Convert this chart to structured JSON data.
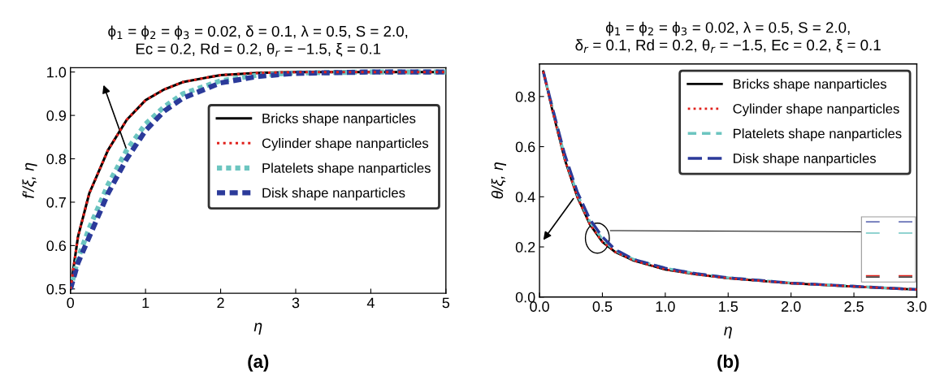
{
  "chart_data": [
    {
      "type": "line",
      "title": "ϕ$_{1}$ = ϕ$_{2}$ = ϕ$_{3}$ = 0.02, δ = 0.1, λ = 0.5, S = 2.0,\nEc = 0.2, Rd = 0.2, θ$_{r}$ = −1.5, ξ = 0.1",
      "xlabel": "η",
      "ylabel": "f′/ξ, η",
      "xlim": [
        0,
        5
      ],
      "ylim": [
        0.49,
        1.01
      ],
      "xticks": [
        0,
        1,
        2,
        3,
        4,
        5
      ],
      "yticks": [
        0.5,
        0.6,
        0.7,
        0.8,
        0.9,
        {
          "value": 1,
          "label": "1.0"
        }
      ],
      "grid": false,
      "legend": "center right",
      "annotations": [
        "(a)"
      ],
      "x": [
        0,
        0.1,
        0.25,
        0.5,
        0.75,
        1.0,
        1.25,
        1.5,
        2.0,
        2.5,
        3.0,
        4.0,
        5.0
      ],
      "series": [
        {
          "name": "Bricks shape nanparticles",
          "color": "#000000",
          "line_style": "solid",
          "values": [
            0.5,
            0.62,
            0.72,
            0.82,
            0.89,
            0.935,
            0.96,
            0.977,
            0.993,
            0.998,
            1.0,
            1.0,
            1.0
          ]
        },
        {
          "name": "Cylinder shape nanparticles",
          "color": "#e0201b",
          "line_style": "dotted",
          "values": [
            0.5,
            0.62,
            0.72,
            0.82,
            0.89,
            0.935,
            0.96,
            0.977,
            0.993,
            0.998,
            1.0,
            1.0,
            1.0
          ]
        },
        {
          "name": "Platelets shape nanparticles",
          "color": "#6cc5c0",
          "line_style": "dashed",
          "values": [
            0.5,
            0.57,
            0.64,
            0.74,
            0.82,
            0.88,
            0.92,
            0.95,
            0.98,
            0.993,
            0.998,
            1.0,
            1.0
          ]
        },
        {
          "name": "Disk shape nanparticles",
          "color": "#2b3a9a",
          "line_style": "dashed",
          "values": [
            0.5,
            0.56,
            0.62,
            0.72,
            0.8,
            0.865,
            0.91,
            0.94,
            0.975,
            0.99,
            0.997,
            1.0,
            1.0
          ]
        }
      ]
    },
    {
      "type": "line",
      "title": "ϕ$_{1}$ = ϕ$_{2}$ = ϕ$_{3}$ = 0.02, λ = 0.5, S = 2.0,\nδ$_{r}$ = 0.1, Rd = 0.2, θ$_{r}$ = −1.5, Ec = 0.2, ξ = 0.1",
      "xlabel": "η",
      "ylabel": "θ/ξ, η",
      "xlim": [
        0,
        3.0
      ],
      "ylim": [
        0,
        0.93
      ],
      "xticks": [
        {
          "value": 0,
          "label": "0.0"
        },
        0.5,
        {
          "value": 1,
          "label": "1.0"
        },
        1.5,
        {
          "value": 2,
          "label": "2.0"
        },
        2.5,
        {
          "value": 3,
          "label": "3.0"
        }
      ],
      "yticks": [
        {
          "value": 0,
          "label": "0.0"
        },
        0.2,
        0.4,
        0.6,
        0.8
      ],
      "grid": false,
      "legend": "upper right",
      "annotations": [
        "(b)"
      ],
      "x": [
        0.03,
        0.1,
        0.2,
        0.3,
        0.4,
        0.5,
        0.6,
        0.75,
        1.0,
        1.25,
        1.5,
        2.0,
        2.5,
        3.0
      ],
      "series": [
        {
          "name": "Bricks shape nanparticles",
          "color": "#000000",
          "line_style": "solid",
          "values": [
            0.9,
            0.75,
            0.55,
            0.4,
            0.29,
            0.22,
            0.18,
            0.145,
            0.11,
            0.09,
            0.075,
            0.055,
            0.042,
            0.03
          ]
        },
        {
          "name": "Cylinder shape nanparticles",
          "color": "#e0201b",
          "line_style": "dotted",
          "values": [
            0.9,
            0.75,
            0.55,
            0.4,
            0.29,
            0.22,
            0.18,
            0.145,
            0.11,
            0.09,
            0.075,
            0.055,
            0.042,
            0.03
          ]
        },
        {
          "name": "Platelets shape nanparticles",
          "color": "#6cc5c0",
          "line_style": "dashed",
          "values": [
            0.9,
            0.76,
            0.56,
            0.41,
            0.3,
            0.23,
            0.185,
            0.15,
            0.115,
            0.093,
            0.077,
            0.056,
            0.043,
            0.03
          ]
        },
        {
          "name": "Disk shape nanparticles",
          "color": "#2b3a9a",
          "line_style": "dashed",
          "values": [
            0.9,
            0.76,
            0.57,
            0.42,
            0.31,
            0.24,
            0.19,
            0.15,
            0.115,
            0.093,
            0.077,
            0.056,
            0.043,
            0.03
          ]
        }
      ]
    }
  ]
}
